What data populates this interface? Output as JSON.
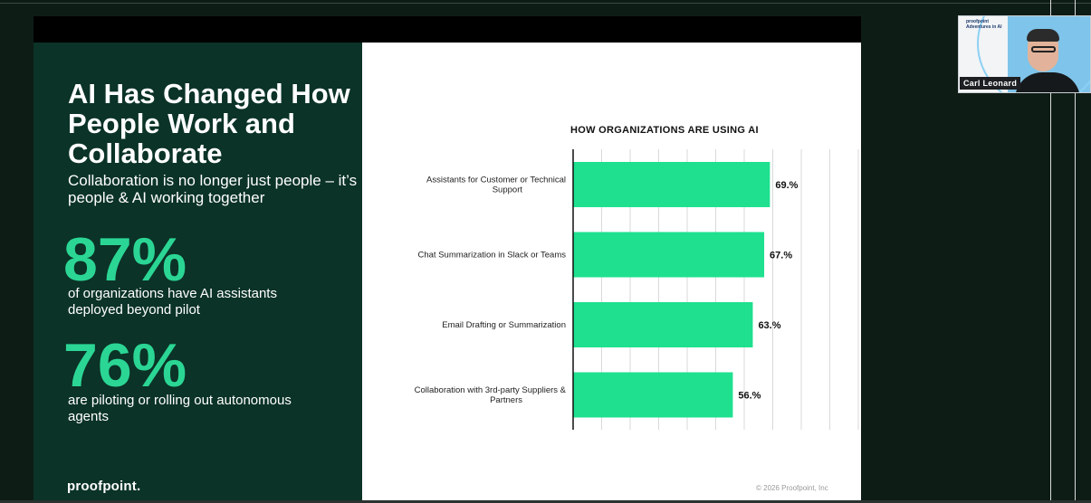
{
  "slide": {
    "title": "AI Has Changed How People Work and Collaborate",
    "subtitle": "Collaboration is no longer just people – it’s people & AI working together",
    "stat1_value": "87%",
    "stat1_text": "of organizations have AI assistants deployed beyond pilot",
    "stat2_value": "76%",
    "stat2_text": "are piloting or rolling out autonomous agents",
    "logo": "proofpoint.",
    "copyright": "© 2026 Proofpoint, Inc"
  },
  "chart_data": {
    "type": "bar",
    "orientation": "horizontal",
    "title": "HOW ORGANIZATIONS ARE USING AI",
    "categories": [
      "Assistants for Customer or Technical Support",
      "Chat Summarization in Slack or Teams",
      "Email Drafting or Summarization",
      "Collaboration with 3rd-party Suppliers & Partners"
    ],
    "values": [
      69,
      67,
      63,
      56
    ],
    "value_labels": [
      "69.%",
      "67.%",
      "63.%",
      "56.%"
    ],
    "xlim": [
      0,
      100
    ],
    "grid": true,
    "bar_color": "#1ee08f"
  },
  "webcam": {
    "name": "Carl Leonard",
    "brand": "proofpoint Adventures in AI"
  }
}
